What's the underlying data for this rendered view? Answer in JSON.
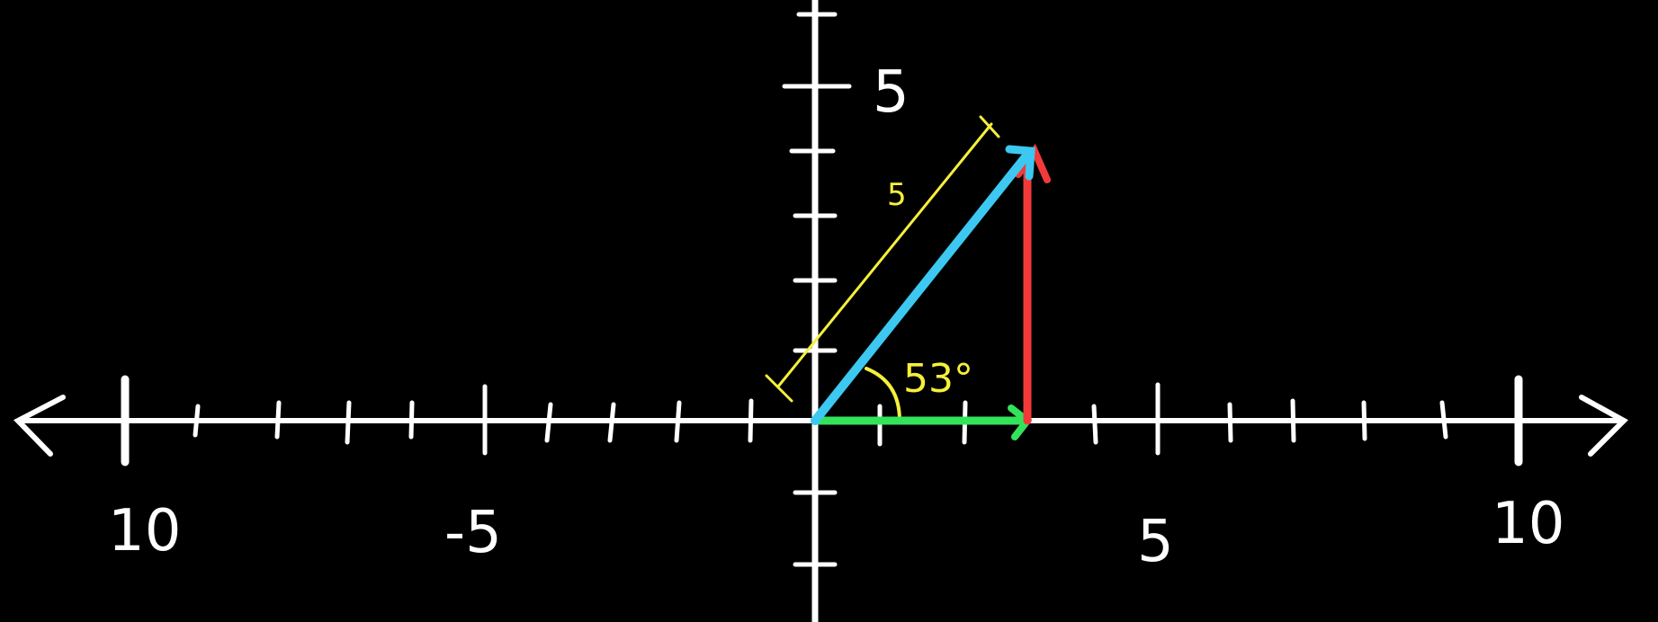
{
  "colors": {
    "background": "#000000",
    "axes": "#ffffff",
    "vector": "#3cc8f0",
    "x_component": "#33e35a",
    "y_component": "#f23a3a",
    "magnitude_annotation": "#f5f03a"
  },
  "axis_labels": {
    "x_neg_10": "10",
    "x_neg_5": "-5",
    "x_pos_5": "5",
    "x_pos_10": "10",
    "y_pos_5": "5"
  },
  "annotations": {
    "magnitude": "5",
    "angle": "53°"
  },
  "diagram": {
    "x_range": [
      -11,
      11
    ],
    "y_range": [
      -3,
      6
    ],
    "vector": {
      "magnitude": 5,
      "angle_deg": 53,
      "components": {
        "x": 3,
        "y": 4
      }
    }
  }
}
